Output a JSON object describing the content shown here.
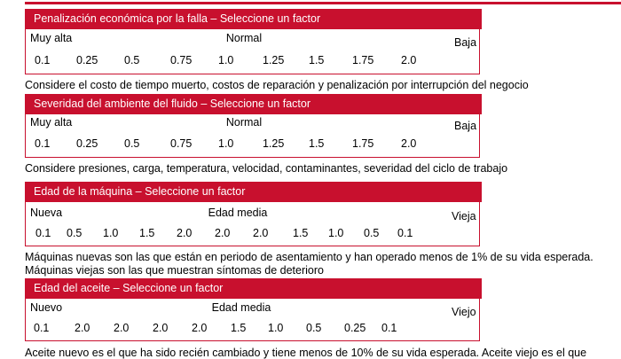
{
  "sections": [
    {
      "title": "Penalización económica por la falla – Seleccione un factor",
      "labels": {
        "left": "Muy alta",
        "middle": "Normal",
        "right": "Baja"
      },
      "values": [
        "0.1",
        "0.25",
        "0.5",
        "0.75",
        "1.0",
        "1.25",
        "1.5",
        "1.75",
        "2.0"
      ],
      "notes": [
        "Considere el costo de tiempo muerto, costos de reparación y penalización por interrupción del negocio"
      ]
    },
    {
      "title": "Severidad del ambiente del fluido – Seleccione un factor",
      "labels": {
        "left": "Muy alta",
        "middle": "Normal",
        "right": "Baja"
      },
      "values": [
        "0.1",
        "0.25",
        "0.5",
        "0.75",
        "1.0",
        "1.25",
        "1.5",
        "1.75",
        "2.0"
      ],
      "notes": [
        "Considere presiones, carga, temperatura, velocidad, contaminantes, severidad del ciclo de trabajo"
      ]
    },
    {
      "title": "Edad de la máquina – Seleccione un factor",
      "labels": {
        "left": "Nueva",
        "middle": "Edad media",
        "right": "Vieja"
      },
      "values": [
        "0.1",
        "0.5",
        "1.0",
        "1.5",
        "2.0",
        "2.0",
        "2.0",
        "1.5",
        "1.0",
        "0.5",
        "0.1"
      ],
      "notes": [
        "Máquinas nuevas son las que están en periodo de asentamiento y han operado menos de 1% de su vida esperada.",
        "Máquinas viejas son las que muestran síntomas de deterioro"
      ]
    },
    {
      "title": "Edad del aceite – Seleccione un factor",
      "labels": {
        "left": "Nuevo",
        "middle": "Edad media",
        "right": "Viejo"
      },
      "values": [
        "0.1",
        "2.0",
        "2.0",
        "2.0",
        "2.0",
        "1.5",
        "1.0",
        "0.5",
        "0.25",
        "0.1"
      ],
      "notes": [
        "Aceite nuevo es el que ha sido recién cambiado y tiene menos de 10% de su vida esperada. Aceite viejo es el que"
      ]
    }
  ]
}
